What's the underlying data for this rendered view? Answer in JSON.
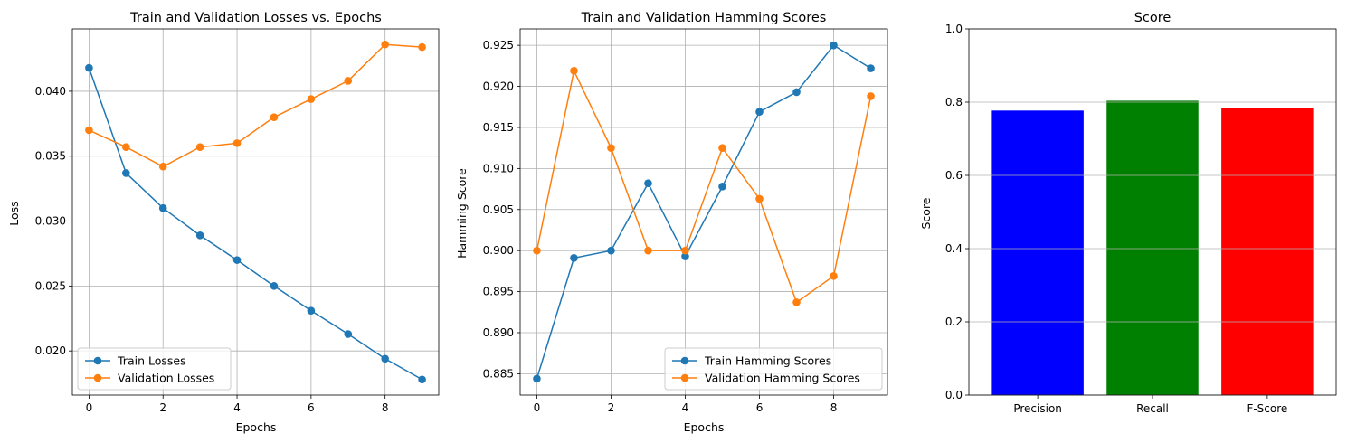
{
  "chart_data": [
    {
      "type": "line",
      "title": "Train and Validation Losses vs. Epochs",
      "xlabel": "Epochs",
      "ylabel": "Loss",
      "x": [
        0,
        1,
        2,
        3,
        4,
        5,
        6,
        7,
        8,
        9
      ],
      "series": [
        {
          "name": "Train Losses",
          "color": "#1f77b4",
          "values": [
            0.0418,
            0.0337,
            0.031,
            0.0289,
            0.027,
            0.025,
            0.0231,
            0.0213,
            0.0194,
            0.0178
          ]
        },
        {
          "name": "Validation Losses",
          "color": "#ff7f0e",
          "values": [
            0.037,
            0.0357,
            0.0342,
            0.0357,
            0.036,
            0.038,
            0.0394,
            0.0408,
            0.0436,
            0.0434
          ]
        }
      ],
      "xlim": [
        -0.45,
        9.45
      ],
      "ylim": [
        0.0166,
        0.0448
      ],
      "xticks": [
        "0",
        "2",
        "4",
        "6",
        "8"
      ],
      "xtick_values": [
        0,
        2,
        4,
        6,
        8
      ],
      "yticks": [
        "0.020",
        "0.025",
        "0.030",
        "0.035",
        "0.040"
      ],
      "ytick_values": [
        0.02,
        0.025,
        0.03,
        0.035,
        0.04
      ],
      "grid": true,
      "legend": "lower left"
    },
    {
      "type": "line",
      "title": "Train and Validation Hamming Scores",
      "xlabel": "Epochs",
      "ylabel": "Hamming Score",
      "x": [
        0,
        1,
        2,
        3,
        4,
        5,
        6,
        7,
        8,
        9
      ],
      "series": [
        {
          "name": "Train Hamming Scores",
          "color": "#1f77b4",
          "values": [
            0.8844,
            0.8991,
            0.9,
            0.9082,
            0.8993,
            0.9078,
            0.9169,
            0.9193,
            0.925,
            0.9222
          ]
        },
        {
          "name": "Validation Hamming Scores",
          "color": "#ff7f0e",
          "values": [
            0.9,
            0.9219,
            0.9125,
            0.9,
            0.9,
            0.9125,
            0.9063,
            0.8937,
            0.8969,
            0.9188
          ]
        }
      ],
      "xlim": [
        -0.45,
        9.45
      ],
      "ylim": [
        0.8824,
        0.927
      ],
      "xticks": [
        "0",
        "2",
        "4",
        "6",
        "8"
      ],
      "xtick_values": [
        0,
        2,
        4,
        6,
        8
      ],
      "yticks": [
        "0.885",
        "0.890",
        "0.895",
        "0.900",
        "0.905",
        "0.910",
        "0.915",
        "0.920",
        "0.925"
      ],
      "ytick_values": [
        0.885,
        0.89,
        0.895,
        0.9,
        0.905,
        0.91,
        0.915,
        0.92,
        0.925
      ],
      "grid": true,
      "legend": "lower right"
    },
    {
      "type": "bar",
      "title": "Score",
      "xlabel": "",
      "ylabel": "Score",
      "categories": [
        "Precision",
        "Recall",
        "F-Score"
      ],
      "values": [
        0.777,
        0.804,
        0.785
      ],
      "colors": [
        "#0000ff",
        "#008000",
        "#ff0000"
      ],
      "ylim": [
        0,
        1.0
      ],
      "yticks": [
        "0.0",
        "0.2",
        "0.4",
        "0.6",
        "0.8",
        "1.0"
      ],
      "ytick_values": [
        0.0,
        0.2,
        0.4,
        0.6,
        0.8,
        1.0
      ],
      "grid": "y",
      "legend": "none"
    }
  ]
}
